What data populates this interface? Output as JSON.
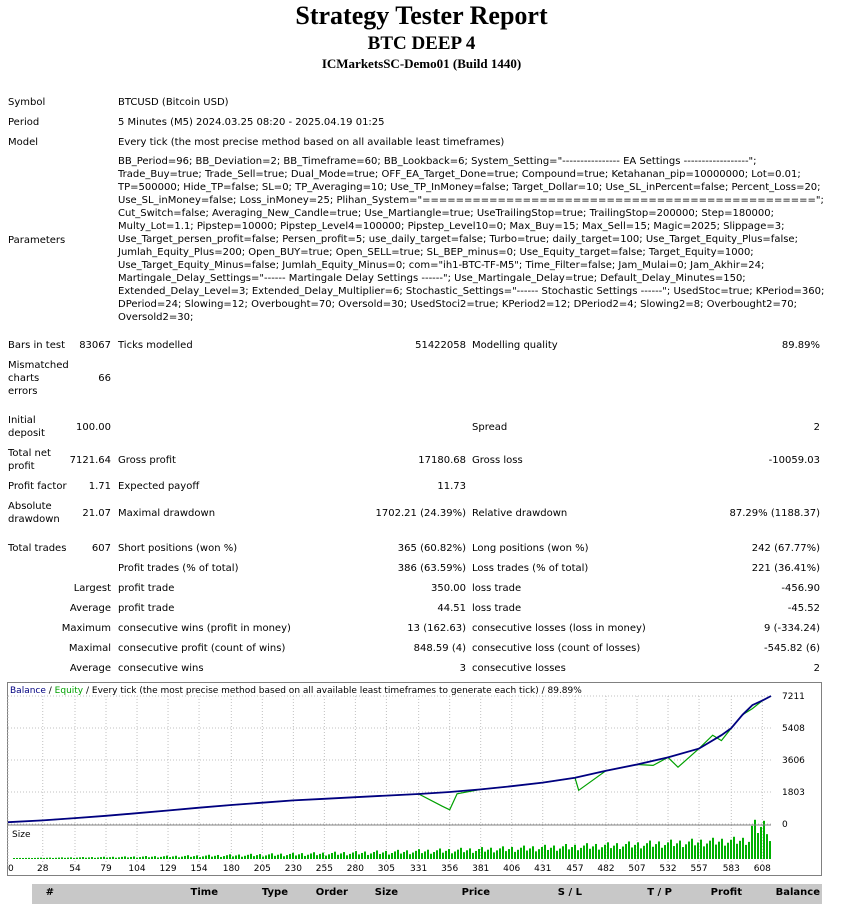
{
  "header": {
    "title": "Strategy Tester Report",
    "subtitle": "BTC DEEP 4",
    "server": "ICMarketsSC-Demo01 (Build 1440)"
  },
  "info": {
    "symbol_label": "Symbol",
    "symbol_value": "BTCUSD (Bitcoin USD)",
    "period_label": "Period",
    "period_value": "5 Minutes (M5) 2024.03.25 08:20 - 2025.04.19 01:25",
    "model_label": "Model",
    "model_value": "Every tick (the most precise method based on all available least timeframes)",
    "parameters_label": "Parameters",
    "parameters_value": "BB_Period=96; BB_Deviation=2; BB_Timeframe=60; BB_Lookback=6; System_Setting=\"---------------- EA Settings ------------------\"; Trade_Buy=true; Trade_Sell=true; Dual_Mode=true; OFF_EA_Target_Done=true; Compound=true; Ketahanan_pip=10000000; Lot=0.01; TP=500000; Hide_TP=false; SL=0; TP_Averaging=10; Use_TP_InMoney=false; Target_Dollar=10; Use_SL_inPercent=false; Percent_Loss=20; Use_SL_inMoney=false; Loss_inMoney=25; Plihan_System=\"===============================================\"; Cut_Switch=false; Averaging_New_Candle=true; Use_Martiangle=true; UseTrailingStop=true; TrailingStop=200000; Step=180000; Multy_Lot=1.1; Pipstep=10000; Pipstep_Level4=100000; Pipstep_Level10=0; Max_Buy=15; Max_Sell=15; Magic=2025; Slippage=3; Use_Target_persen_profit=false; Persen_profit=5; use_daily_target=false; Turbo=true; daily_target=100; Use_Target_Equity_Plus=false; Jumlah_Equity_Plus=200; Open_BUY=true; Open_SELL=true; SL_BEP_minus=0; Use_Equity_target=false; Target_Equity=1000; Use_Target_Equity_Minus=false; Jumlah_Equity_Minus=0; com=\"ih1-BTC-TF-M5\"; Time_Filter=false; Jam_Mulai=0; Jam_Akhir=24; Martingale_Delay_Settings=\"------ Martingale Delay Settings ------\"; Use_Martingale_Delay=true; Default_Delay_Minutes=150; Extended_Delay_Level=3; Extended_Delay_Multiplier=6; Stochastic_Settings=\"------ Stochastic Settings ------\"; UsedStoc=true; KPeriod=360; DPeriod=24; Slowing=12; Overbought=70; Oversold=30; UsedStoci2=true; KPeriod2=12; DPeriod2=4; Slowing2=8; Overbought2=70; Oversold2=30;"
  },
  "stats": {
    "bars_label": "Bars in test",
    "bars_value": "83067",
    "ticks_label": "Ticks modelled",
    "ticks_value": "51422058",
    "quality_label": "Modelling quality",
    "quality_value": "89.89%",
    "mismatch_label": "Mismatched charts errors",
    "mismatch_value": "66",
    "deposit_label": "Initial deposit",
    "deposit_value": "100.00",
    "spread_label": "Spread",
    "spread_value": "2",
    "net_label": "Total net profit",
    "net_value": "7121.64",
    "gross_profit_label": "Gross profit",
    "gross_profit_value": "17180.68",
    "gross_loss_label": "Gross loss",
    "gross_loss_value": "-10059.03",
    "pf_label": "Profit factor",
    "pf_value": "1.71",
    "ep_label": "Expected payoff",
    "ep_value": "11.73",
    "abs_dd_label": "Absolute drawdown",
    "abs_dd_value": "21.07",
    "max_dd_label": "Maximal drawdown",
    "max_dd_value": "1702.21 (24.39%)",
    "rel_dd_label": "Relative drawdown",
    "rel_dd_value": "87.29% (1188.37)",
    "total_trades_label": "Total trades",
    "total_trades_value": "607",
    "short_label": "Short positions (won %)",
    "short_value": "365 (60.82%)",
    "long_label": "Long positions (won %)",
    "long_value": "242 (67.77%)",
    "profit_trades_label": "Profit trades (% of total)",
    "profit_trades_value": "386 (63.59%)",
    "loss_trades_label": "Loss trades (% of total)",
    "loss_trades_value": "221 (36.41%)",
    "largest_label": "Largest",
    "largest_profit_label": "profit trade",
    "largest_profit_value": "350.00",
    "largest_loss_label": "loss trade",
    "largest_loss_value": "-456.90",
    "average_label": "Average",
    "average_profit_label": "profit trade",
    "average_profit_value": "44.51",
    "average_loss_label": "loss trade",
    "average_loss_value": "-45.52",
    "maximum_label": "Maximum",
    "max_cons_wins_label": "consecutive wins (profit in money)",
    "max_cons_wins_value": "13 (162.63)",
    "max_cons_losses_label": "consecutive losses (loss in money)",
    "max_cons_losses_value": "9 (-334.24)",
    "maximal_label": "Maximal",
    "maximal_cons_profit_label": "consecutive profit (count of wins)",
    "maximal_cons_profit_value": "848.59 (4)",
    "maximal_cons_loss_label": "consecutive loss (count of losses)",
    "maximal_cons_loss_value": "-545.82 (6)",
    "average2_label": "Average",
    "avg_cons_wins_label": "consecutive wins",
    "avg_cons_wins_value": "3",
    "avg_cons_losses_label": "consecutive losses",
    "avg_cons_losses_value": "2"
  },
  "chart_legend": {
    "balance": "Balance",
    "sep": " / ",
    "equity": "Equity",
    "rest": " / Every tick (the most precise method based on all available least timeframes to generate each tick) / 89.89%",
    "size_label": "Size"
  },
  "colors": {
    "balance": "#000080",
    "equity": "#00a000",
    "volume": "#00b000",
    "grid": "#c0c0c0"
  },
  "chart_data": {
    "type": "line",
    "title": "",
    "x_ticks": [
      0,
      28,
      54,
      79,
      104,
      129,
      154,
      180,
      205,
      230,
      255,
      280,
      305,
      331,
      356,
      381,
      406,
      431,
      457,
      482,
      507,
      532,
      557,
      583,
      608
    ],
    "y_ticks": [
      0,
      1803,
      3606,
      5408,
      7211
    ],
    "xlim": [
      0,
      615
    ],
    "ylim": [
      0,
      7211
    ],
    "series": [
      {
        "name": "Balance",
        "x": [
          0,
          28,
          54,
          79,
          104,
          129,
          154,
          180,
          205,
          230,
          255,
          280,
          305,
          331,
          356,
          381,
          406,
          431,
          457,
          482,
          507,
          532,
          557,
          575,
          583,
          592,
          600,
          608,
          615
        ],
        "y": [
          100,
          200,
          330,
          460,
          610,
          760,
          920,
          1070,
          1200,
          1330,
          1420,
          1510,
          1600,
          1690,
          1800,
          1950,
          2130,
          2330,
          2600,
          3000,
          3350,
          3750,
          4250,
          5000,
          5400,
          6150,
          6700,
          6950,
          7211
        ]
      },
      {
        "name": "Equity",
        "x": [
          0,
          28,
          54,
          79,
          104,
          129,
          154,
          180,
          205,
          230,
          255,
          280,
          305,
          331,
          350,
          356,
          362,
          381,
          406,
          431,
          457,
          460,
          482,
          507,
          520,
          532,
          540,
          557,
          568,
          575,
          583,
          592,
          600,
          608,
          615
        ],
        "y": [
          100,
          200,
          330,
          460,
          610,
          760,
          920,
          1070,
          1200,
          1330,
          1420,
          1510,
          1600,
          1690,
          1000,
          800,
          1700,
          1950,
          2130,
          2330,
          2600,
          1900,
          3000,
          3350,
          3300,
          3750,
          3200,
          4250,
          5000,
          4700,
          5400,
          6150,
          6500,
          6950,
          7211
        ]
      }
    ],
    "size_series": {
      "name": "Size"
    }
  },
  "table": {
    "columns": [
      "#",
      "Time",
      "Type",
      "Order",
      "Size",
      "Price",
      "S / L",
      "T / P",
      "Profit",
      "Balance"
    ]
  }
}
